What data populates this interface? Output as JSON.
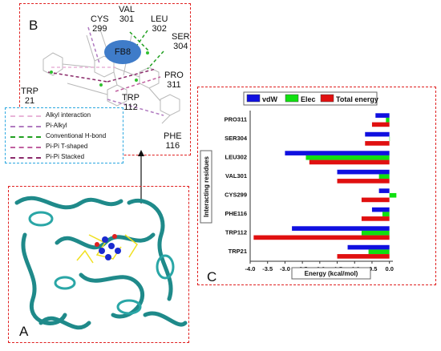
{
  "panels": {
    "a": "A",
    "b": "B",
    "c": "C"
  },
  "ligand_label": "FB8",
  "residues": {
    "cys299": "CYS\n299",
    "val301": "VAL\n301",
    "leu302": "LEU\n302",
    "ser304": "SER\n304",
    "pro311": "PRO\n311",
    "trp21": "TRP\n21",
    "trp112": "TRP\n112",
    "phe116": "PHE\n116"
  },
  "interaction_legend": {
    "items": [
      {
        "label": "Alkyl interaction",
        "color": "#e8b4d8"
      },
      {
        "label": "Pi-Alkyl",
        "color": "#b07ac0"
      },
      {
        "label": "Conventional H-bond",
        "color": "#20a020"
      },
      {
        "label": "Pi-Pi T-shaped",
        "color": "#c060a0"
      },
      {
        "label": "Pi-Pi Stacked",
        "color": "#8a2a6a"
      }
    ]
  },
  "chart_data": {
    "type": "bar",
    "orientation": "horizontal",
    "categories": [
      "PRO311",
      "SER304",
      "LEU302",
      "VAL301",
      "CYS299",
      "PHE116",
      "TRP112",
      "TRP21"
    ],
    "series": [
      {
        "name": "vdW",
        "color": "#1010e0",
        "values": [
          -0.4,
          -0.7,
          -3.0,
          -1.5,
          -0.3,
          -0.5,
          -2.8,
          -1.2
        ]
      },
      {
        "name": "Elec",
        "color": "#10e010",
        "values": [
          -0.1,
          0.0,
          -2.4,
          -0.3,
          0.2,
          -0.2,
          -0.8,
          -0.6
        ]
      },
      {
        "name": "Total energy",
        "color": "#e01010",
        "values": [
          -0.5,
          -0.7,
          -2.3,
          -1.5,
          -0.8,
          -0.8,
          -3.9,
          -1.5
        ]
      }
    ],
    "xlabel": "Energy (kcal/mol)",
    "ylabel": "Interacting residues",
    "xlim": [
      -4.0,
      0.1
    ],
    "ticks": [
      -4.0,
      -3.5,
      -3.0,
      -2.5,
      -2.0,
      -1.5,
      -1.0,
      -0.5,
      0.0
    ],
    "tick_labels": [
      "-4.0",
      "-3.5",
      "-3.0",
      "-2.5",
      "-2.0",
      "-1.5",
      "-1.0",
      "-0.5",
      "0.0"
    ],
    "legend_position": "top",
    "grid": false
  }
}
